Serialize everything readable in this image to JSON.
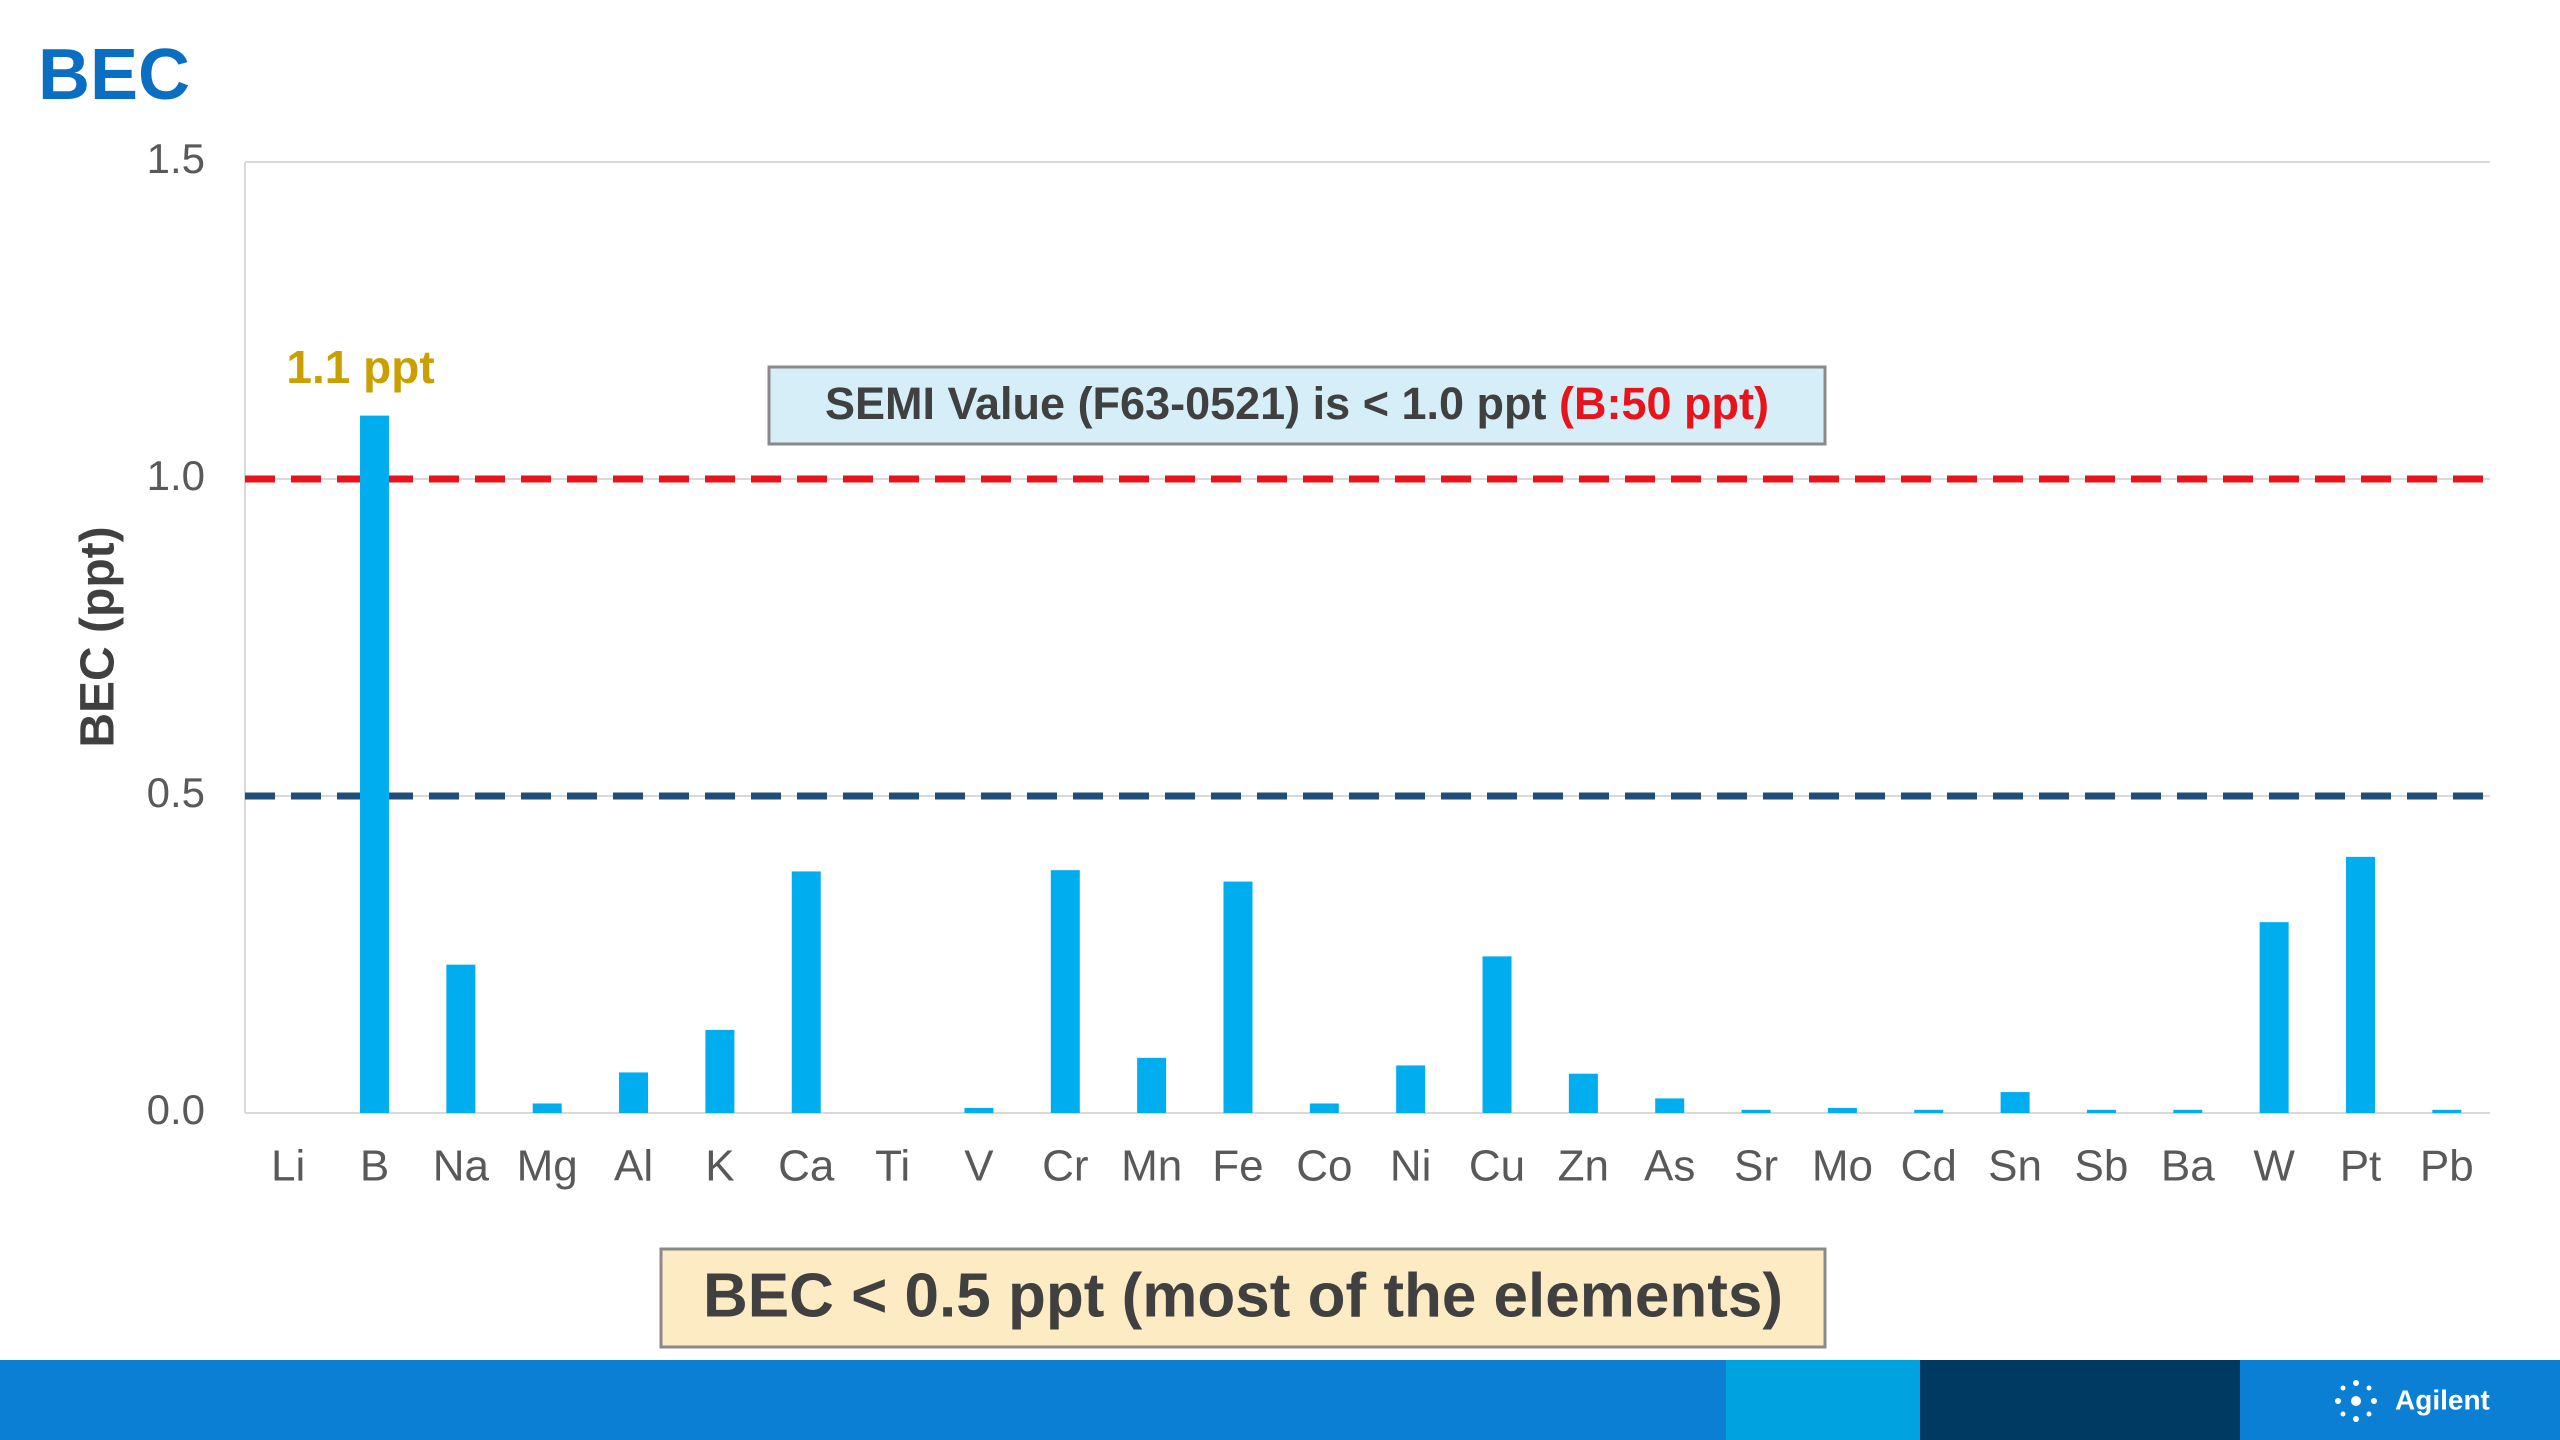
{
  "chart_data": {
    "type": "bar",
    "title": "BEC",
    "ylabel": "BEC (ppt)",
    "categories": [
      "Li",
      "B",
      "Na",
      "Mg",
      "Al",
      "K",
      "Ca",
      "Ti",
      "V",
      "Cr",
      "Mn",
      "Fe",
      "Co",
      "Ni",
      "Cu",
      "Zn",
      "As",
      "Sr",
      "Mo",
      "Cd",
      "Sn",
      "Sb",
      "Ba",
      "W",
      "Pt",
      "Pb"
    ],
    "values": [
      0,
      1.1,
      0.234,
      0.015,
      0.064,
      0.131,
      0.381,
      0,
      0.008,
      0.383,
      0.087,
      0.365,
      0.015,
      0.075,
      0.247,
      0.062,
      0.023,
      0.005,
      0.008,
      0.005,
      0.033,
      0.005,
      0.005,
      0.301,
      0.404,
      0.005
    ],
    "color": "#00aeef",
    "ylim": [
      0,
      1.5
    ],
    "yticks": [
      {
        "value": 0,
        "label": "0.0"
      },
      0.5,
      {
        "value": 1,
        "label": "1.0"
      },
      1.5
    ],
    "reference_lines": [
      {
        "value": 1,
        "color": "#e8141b"
      },
      {
        "value": 0.5,
        "color": "#1f4e79"
      }
    ],
    "annotations": {
      "bar_label": "1.1 ppt",
      "semi_text": "SEMI Value (F63-0521) is < 1.0 ppt",
      "semi_highlight": "(B:50 ppt)",
      "summary": "BEC < 0.5 ppt (most of the elements)"
    },
    "logo": "Agilent"
  }
}
